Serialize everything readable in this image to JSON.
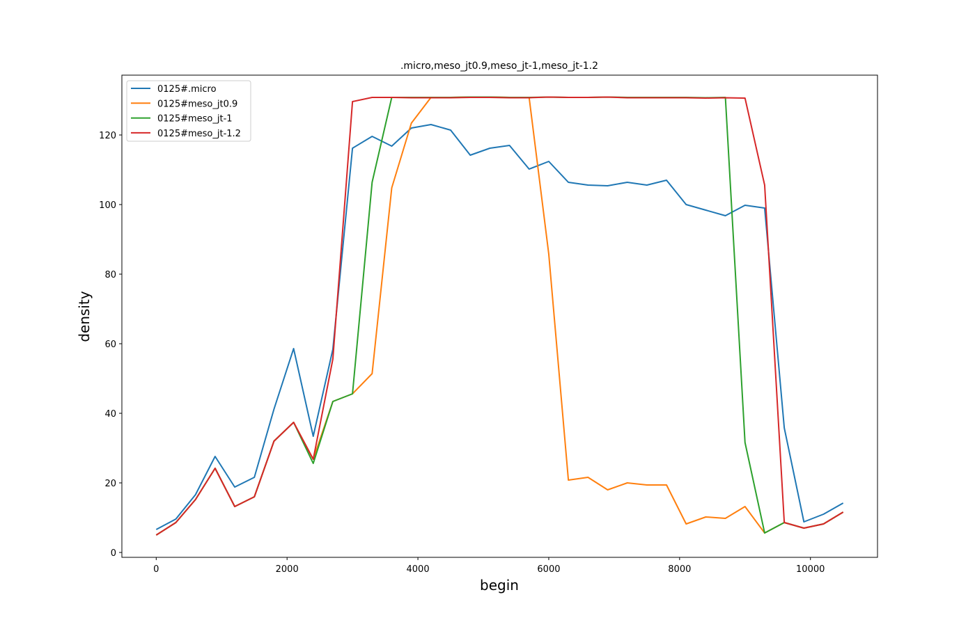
{
  "chart_data": {
    "type": "line",
    "title": ".micro,meso_jt0.9,meso_jt-1,meso_jt-1.2",
    "x_label": "begin",
    "y_label": "density",
    "x": [
      0,
      300,
      600,
      900,
      1200,
      1500,
      1800,
      2100,
      2400,
      2700,
      3000,
      3300,
      3600,
      3900,
      4200,
      4500,
      4800,
      5100,
      5400,
      5700,
      6000,
      6300,
      6600,
      6900,
      7200,
      7500,
      7800,
      8100,
      8400,
      8700,
      9000,
      9300,
      9600,
      9900,
      10200,
      10500
    ],
    "series": [
      {
        "name": "0125#.micro",
        "color": "#1f77b4",
        "values": [
          6.6,
          9.6,
          16.6,
          27.6,
          18.8,
          21.6,
          41.2,
          58.6,
          33.4,
          58.4,
          116.2,
          119.6,
          116.8,
          122,
          123,
          121.4,
          114.2,
          116.2,
          117,
          110.2,
          112.4,
          106.4,
          105.6,
          105.4,
          106.4,
          105.6,
          107,
          100,
          98.4,
          96.8,
          99.8,
          99,
          35.8,
          8.8,
          11,
          14.2
        ]
      },
      {
        "name": "0125#meso_jt0.9",
        "color": "#ff7f0e",
        "values": [
          5,
          8.6,
          15.2,
          24.2,
          13.2,
          16,
          32,
          37.4,
          26.8,
          43.4,
          45.6,
          51.4,
          104.8,
          123.4,
          130.8,
          130.8,
          130.9,
          130.9,
          130.8,
          130.8,
          85.8,
          20.8,
          21.6,
          18,
          20,
          19.4,
          19.4,
          8.2,
          10.2,
          9.8,
          13.2,
          5.6,
          8.6,
          7,
          8.2,
          11.6
        ]
      },
      {
        "name": "0125#meso_jt-1",
        "color": "#2ca02c",
        "values": [
          5,
          8.6,
          15.2,
          24.2,
          13.2,
          16,
          32,
          37.4,
          25.6,
          43.4,
          45.6,
          106.4,
          130.8,
          130.8,
          130.8,
          130.8,
          130.9,
          130.9,
          130.8,
          130.8,
          130.9,
          130.8,
          130.8,
          130.9,
          130.8,
          130.8,
          130.8,
          130.8,
          130.7,
          130.8,
          31.6,
          5.6,
          8.6,
          7,
          8.2,
          11.6
        ]
      },
      {
        "name": "0125#meso_jt-1.2",
        "color": "#d62728",
        "values": [
          5,
          8.6,
          15.2,
          24.2,
          13.2,
          16,
          32,
          37.4,
          26.8,
          55.6,
          129.6,
          130.8,
          130.8,
          130.7,
          130.7,
          130.7,
          130.8,
          130.8,
          130.7,
          130.7,
          130.9,
          130.8,
          130.8,
          130.9,
          130.7,
          130.7,
          130.7,
          130.7,
          130.6,
          130.7,
          130.6,
          105.6,
          8.6,
          7,
          8.2,
          11.6
        ]
      }
    ],
    "xlim": [
      -525,
      11025
    ],
    "ylim": [
      -1.4,
      137.2
    ],
    "xticks": [
      0,
      2000,
      4000,
      6000,
      8000,
      10000
    ],
    "yticks": [
      0,
      20,
      40,
      60,
      80,
      100,
      120
    ],
    "grid": false,
    "legend": "upper left"
  }
}
